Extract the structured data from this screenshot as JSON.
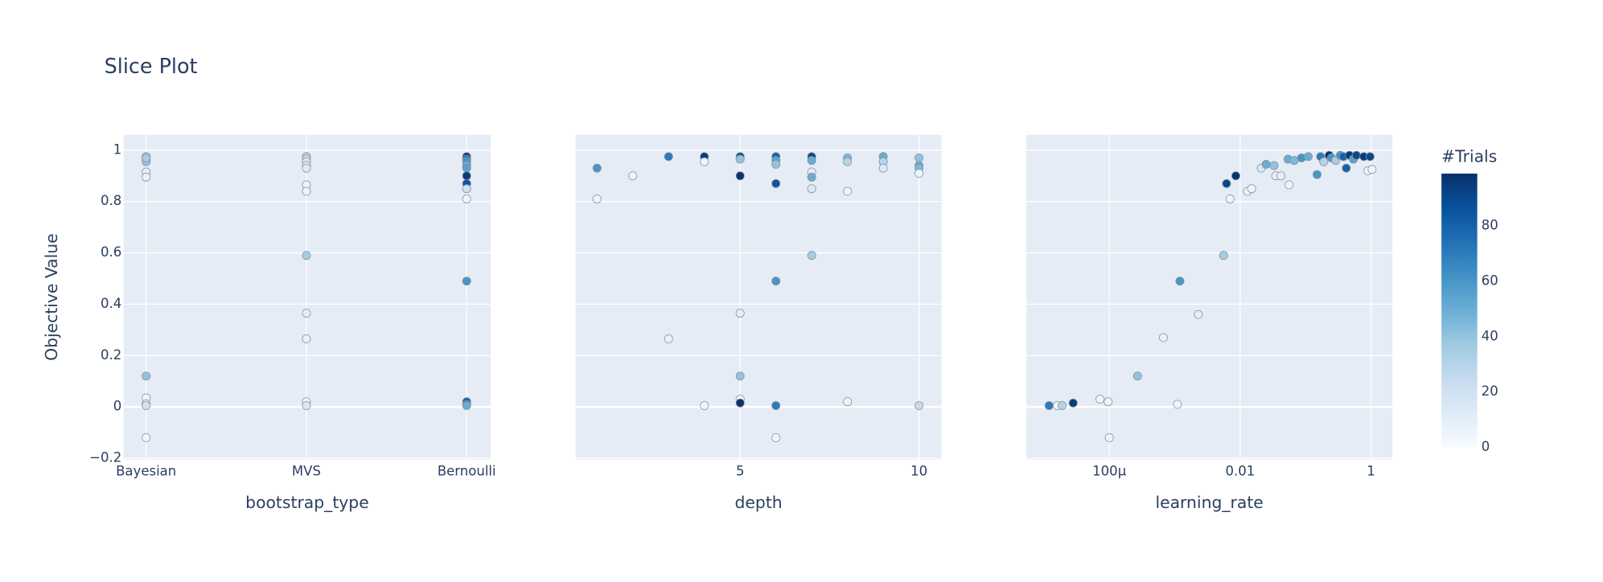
{
  "chart_data": {
    "type": "scatter",
    "title": "Slice Plot",
    "y_label": "Objective Value",
    "ylim": [
      -0.205,
      1.06
    ],
    "yticks": [
      {
        "value": -0.2,
        "label": "−0.2"
      },
      0,
      0.2,
      0.4,
      0.6,
      0.8,
      1
    ],
    "grid": true,
    "colorbar": {
      "title": "#Trials",
      "lim": [
        0,
        99
      ],
      "ticks": [
        0,
        20,
        40,
        60,
        80
      ],
      "colorscale": [
        "#f7fbff",
        "#deebf7",
        "#c6dbef",
        "#9ecae1",
        "#6baed6",
        "#4292c6",
        "#2171b5",
        "#08519c",
        "#08306b"
      ]
    },
    "panels": [
      {
        "x_label": "bootstrap_type",
        "scale": "category",
        "categories": [
          "Bayesian",
          "MVS",
          "Bernoulli"
        ],
        "x": [
          "Bayesian",
          "Bayesian",
          "Bayesian",
          "Bayesian",
          "Bayesian",
          "Bayesian",
          "Bayesian",
          "Bayesian",
          "Bayesian",
          "Bayesian",
          "Bayesian",
          "MVS",
          "MVS",
          "MVS",
          "MVS",
          "MVS",
          "MVS",
          "MVS",
          "MVS",
          "MVS",
          "MVS",
          "MVS",
          "MVS",
          "Bernoulli",
          "Bernoulli",
          "Bernoulli",
          "Bernoulli",
          "Bernoulli",
          "Bernoulli",
          "Bernoulli",
          "Bernoulli",
          "Bernoulli",
          "Bernoulli",
          "Bernoulli",
          "Bernoulli",
          "Bernoulli"
        ],
        "values": [
          0.975,
          0.965,
          0.955,
          0.97,
          0.915,
          0.895,
          0.12,
          0.035,
          0.012,
          0.005,
          -0.12,
          0.975,
          0.965,
          0.955,
          0.94,
          0.93,
          0.865,
          0.84,
          0.59,
          0.365,
          0.265,
          0.02,
          0.005,
          0.975,
          0.965,
          0.955,
          0.94,
          0.93,
          0.9,
          0.87,
          0.85,
          0.81,
          0.49,
          0.02,
          0.01,
          0.005
        ],
        "trials": [
          30,
          25,
          40,
          35,
          10,
          8,
          40,
          5,
          5,
          20,
          5,
          30,
          20,
          15,
          10,
          12,
          5,
          5,
          35,
          10,
          8,
          5,
          15,
          95,
          70,
          60,
          50,
          55,
          95,
          85,
          20,
          5,
          60,
          80,
          70,
          50
        ]
      },
      {
        "x_label": "depth",
        "scale": "linear",
        "xlim": [
          0.4,
          10.63
        ],
        "xticks": [
          5,
          10
        ],
        "x": [
          1,
          1,
          2,
          3,
          3,
          4,
          4,
          4,
          5,
          5,
          5,
          5,
          5,
          5,
          5,
          6,
          6,
          6,
          6,
          6,
          6,
          6,
          7,
          7,
          7,
          7,
          7,
          7,
          8,
          8,
          8,
          8,
          9,
          9,
          9,
          10,
          10,
          10,
          10,
          10
        ],
        "values": [
          0.93,
          0.81,
          0.9,
          0.975,
          0.265,
          0.975,
          0.955,
          0.005,
          0.975,
          0.965,
          0.9,
          0.365,
          0.12,
          0.03,
          0.015,
          0.975,
          0.96,
          0.945,
          0.87,
          0.49,
          0.005,
          -0.12,
          0.975,
          0.96,
          0.915,
          0.895,
          0.85,
          0.59,
          0.97,
          0.955,
          0.84,
          0.02,
          0.975,
          0.955,
          0.93,
          0.97,
          0.94,
          0.93,
          0.91,
          0.005
        ],
        "trials": [
          60,
          5,
          5,
          70,
          8,
          95,
          5,
          5,
          90,
          40,
          98,
          10,
          40,
          5,
          98,
          80,
          55,
          40,
          85,
          60,
          70,
          5,
          90,
          50,
          10,
          50,
          15,
          35,
          45,
          30,
          5,
          5,
          50,
          30,
          15,
          40,
          50,
          45,
          5,
          25
        ]
      },
      {
        "x_label": "learning_rate",
        "scale": "log",
        "xlim": [
          5.4e-06,
          2.13
        ],
        "xticks": [
          {
            "value": 0.0001,
            "label": "100μ"
          },
          0.01,
          1
        ],
        "x": [
          1.2e-05,
          1.6e-05,
          1.9e-05,
          2.8e-05,
          7.2e-05,
          9.6e-05,
          0.0001,
          0.00027,
          0.00067,
          0.0011,
          0.0012,
          0.0023,
          0.0056,
          0.0062,
          0.007,
          0.0086,
          0.013,
          0.015,
          0.021,
          0.025,
          0.033,
          0.035,
          0.042,
          0.054,
          0.056,
          0.067,
          0.087,
          0.11,
          0.15,
          0.17,
          0.19,
          0.23,
          0.25,
          0.29,
          0.34,
          0.38,
          0.42,
          0.47,
          0.54,
          0.6,
          0.78,
          0.9,
          0.97,
          1.04
        ],
        "values": [
          0.005,
          0.005,
          0.005,
          0.015,
          0.03,
          0.02,
          -0.12,
          0.12,
          0.27,
          0.01,
          0.49,
          0.36,
          0.59,
          0.87,
          0.81,
          0.9,
          0.84,
          0.85,
          0.93,
          0.945,
          0.94,
          0.9,
          0.9,
          0.965,
          0.865,
          0.96,
          0.97,
          0.975,
          0.905,
          0.975,
          0.955,
          0.98,
          0.97,
          0.96,
          0.98,
          0.975,
          0.93,
          0.98,
          0.965,
          0.98,
          0.975,
          0.92,
          0.975,
          0.925
        ],
        "trials": [
          70,
          5,
          30,
          95,
          5,
          5,
          5,
          40,
          8,
          5,
          60,
          10,
          35,
          90,
          5,
          98,
          5,
          5,
          15,
          50,
          40,
          10,
          10,
          50,
          5,
          45,
          60,
          50,
          60,
          70,
          30,
          98,
          60,
          35,
          60,
          80,
          80,
          95,
          55,
          90,
          95,
          5,
          90,
          5
        ]
      }
    ]
  }
}
